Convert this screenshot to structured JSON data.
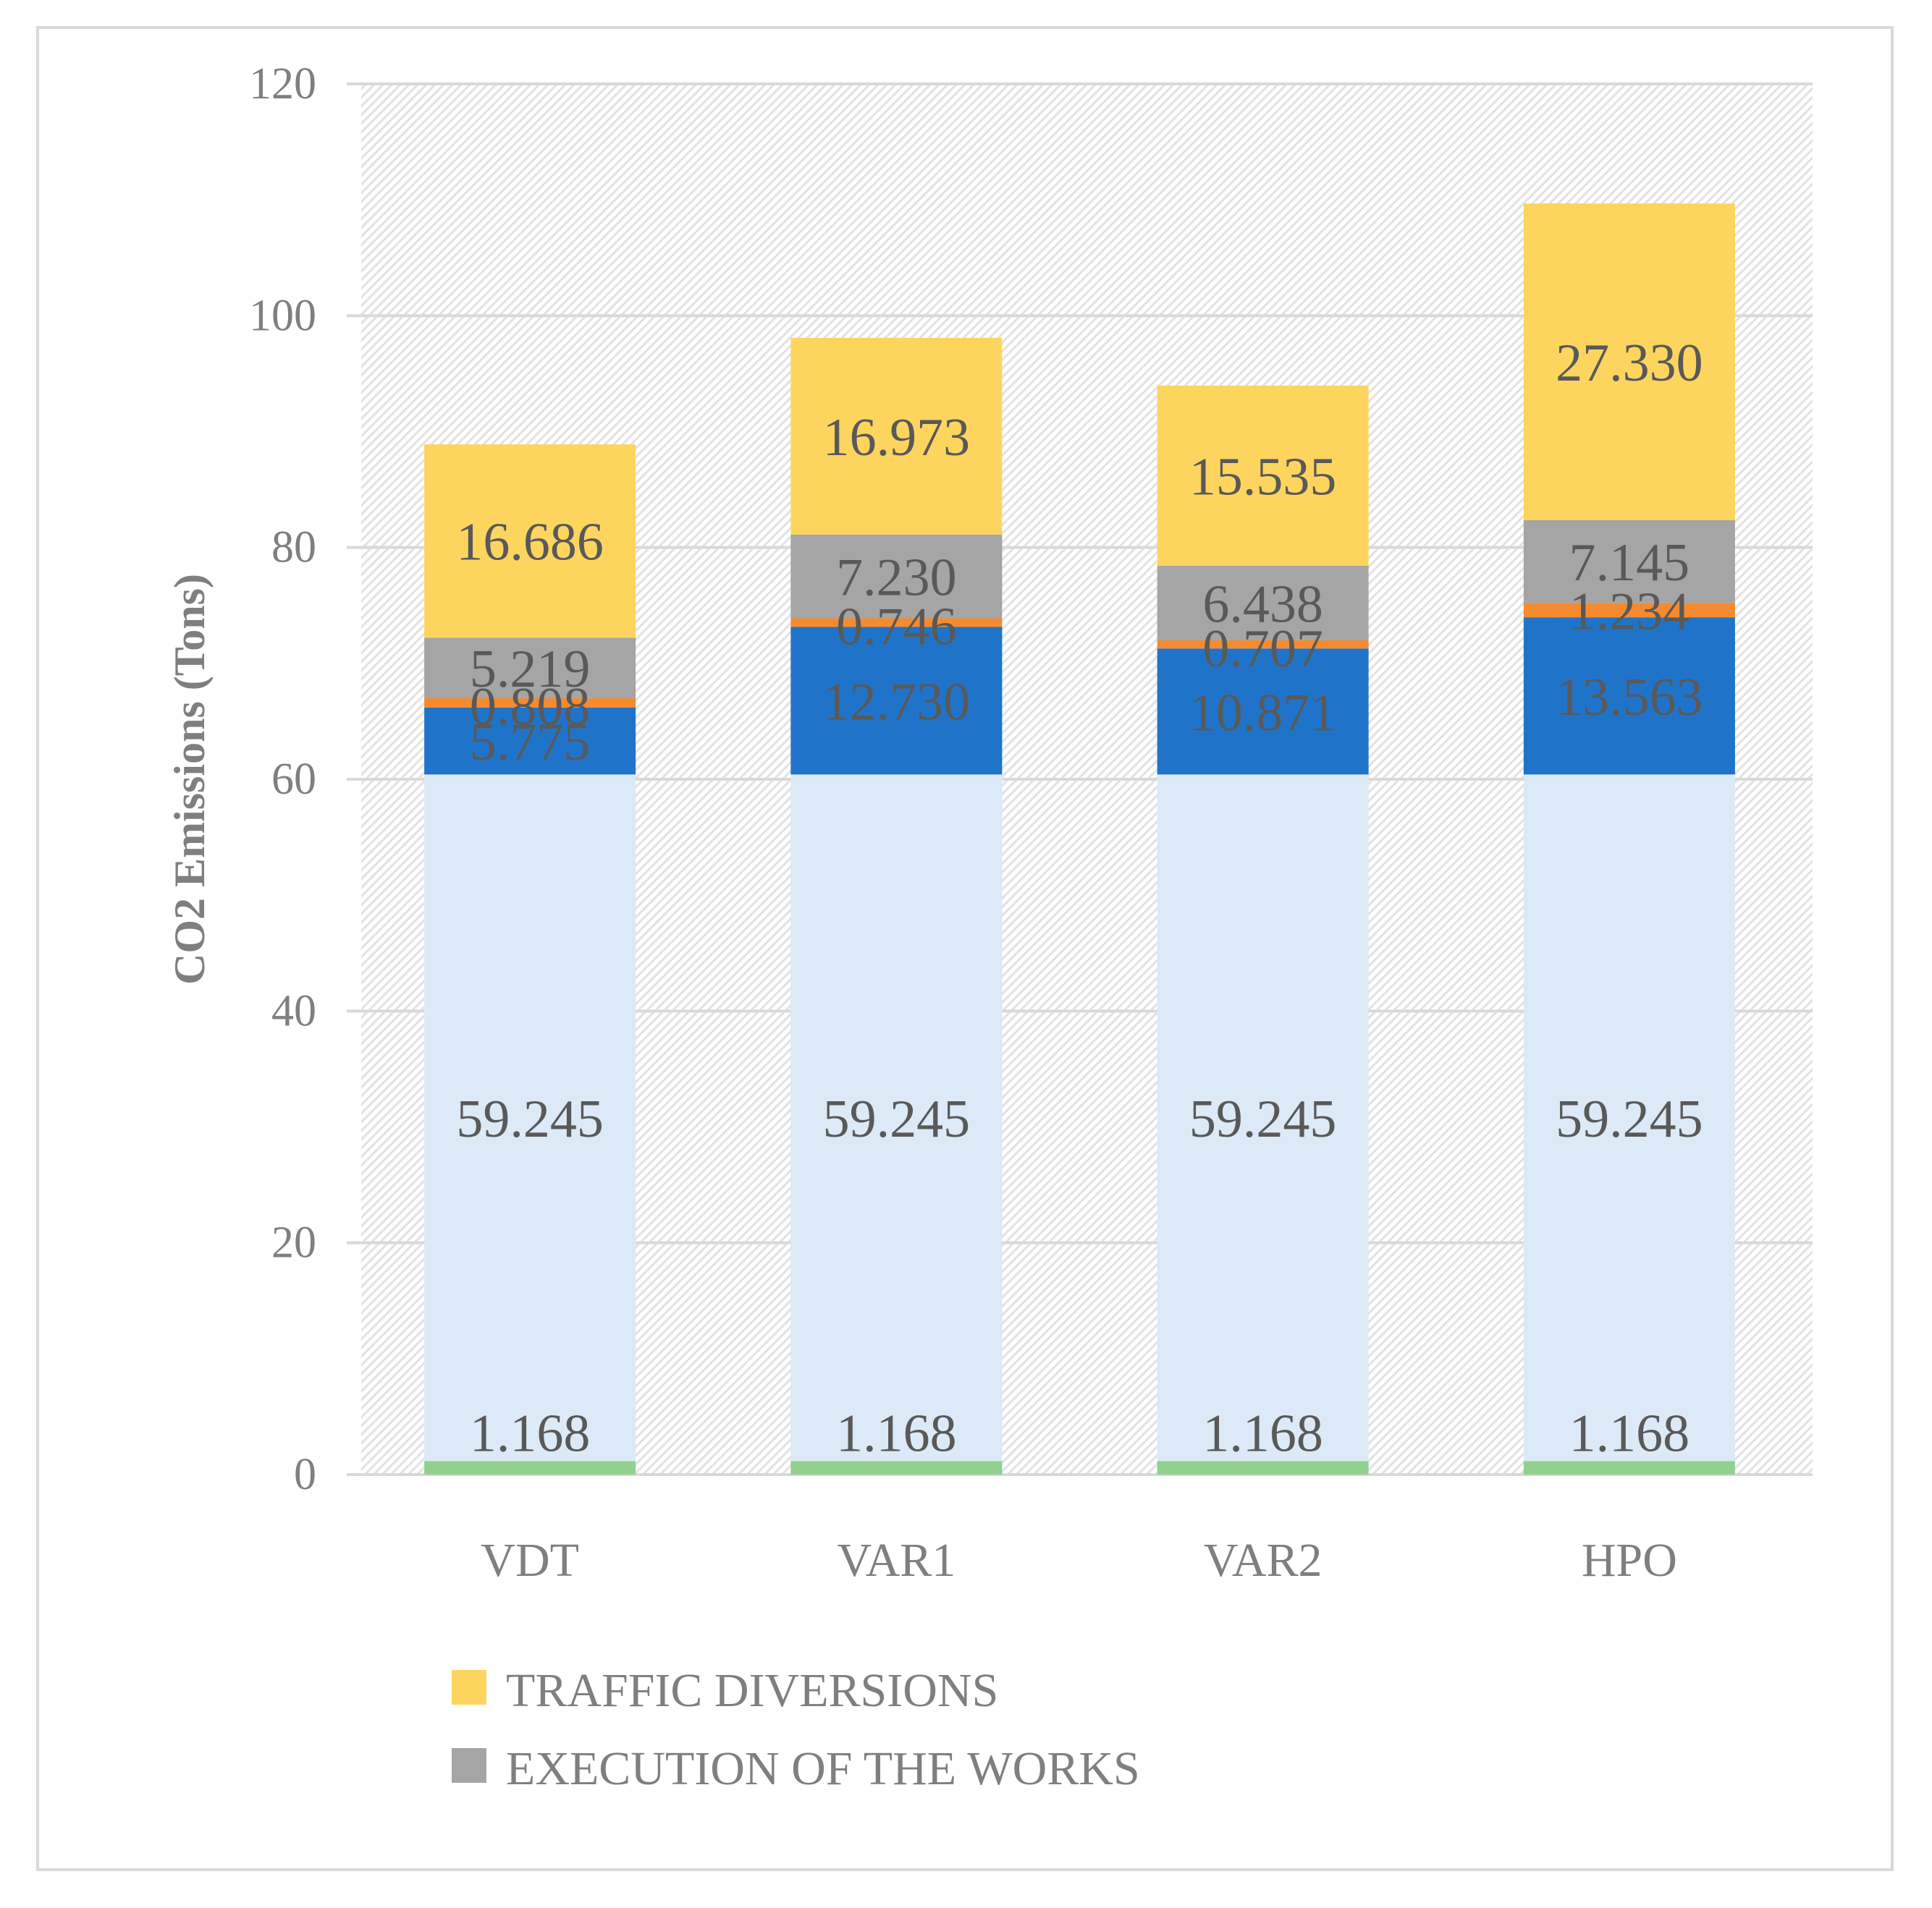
{
  "chart_data": {
    "type": "bar",
    "stacked": true,
    "categories": [
      "VDT",
      "VAR1",
      "VAR2",
      "HPO"
    ],
    "series": [
      {
        "values": [
          1.168,
          1.168,
          1.168,
          1.168
        ],
        "color": "#92d08f"
      },
      {
        "values": [
          59.245,
          59.245,
          59.245,
          59.245
        ],
        "color": "#dbeaf6"
      },
      {
        "values": [
          5.775,
          12.73,
          10.871,
          13.563
        ],
        "color": "#1f74c9"
      },
      {
        "values": [
          0.808,
          0.746,
          0.707,
          1.234
        ],
        "color": "#f58a2f"
      },
      {
        "name": "EXECUTION OF THE WORKS",
        "values": [
          5.219,
          7.23,
          6.438,
          7.145
        ],
        "color": "#a5a5a5"
      },
      {
        "name": "TRAFFIC DIVERSIONS",
        "values": [
          16.686,
          16.973,
          15.535,
          27.33
        ],
        "color": "#fdd55e"
      }
    ],
    "data_labels": [
      [
        "1.168",
        "1.168",
        "1.168",
        "1.168"
      ],
      [
        "59.245",
        "59.245",
        "59.245",
        "59.245"
      ],
      [
        "5.775",
        "12.730",
        "10.871",
        "13.563"
      ],
      [
        "0.808",
        "0.746",
        "0.707",
        "1.234"
      ],
      [
        "5.219",
        "7.230",
        "6.438",
        "7.145"
      ],
      [
        "16.686",
        "16.973",
        "15.535",
        "27.330"
      ]
    ],
    "ylabel": "CO2 Emissions (Tons)",
    "ylim": [
      0,
      120
    ],
    "yticks": [
      "0",
      "20",
      "40",
      "60",
      "80",
      "100",
      "120"
    ],
    "grid": true,
    "legend": [
      "TRAFFIC DIVERSIONS",
      "EXECUTION OF THE WORKS"
    ],
    "legend_position": "bottom"
  }
}
